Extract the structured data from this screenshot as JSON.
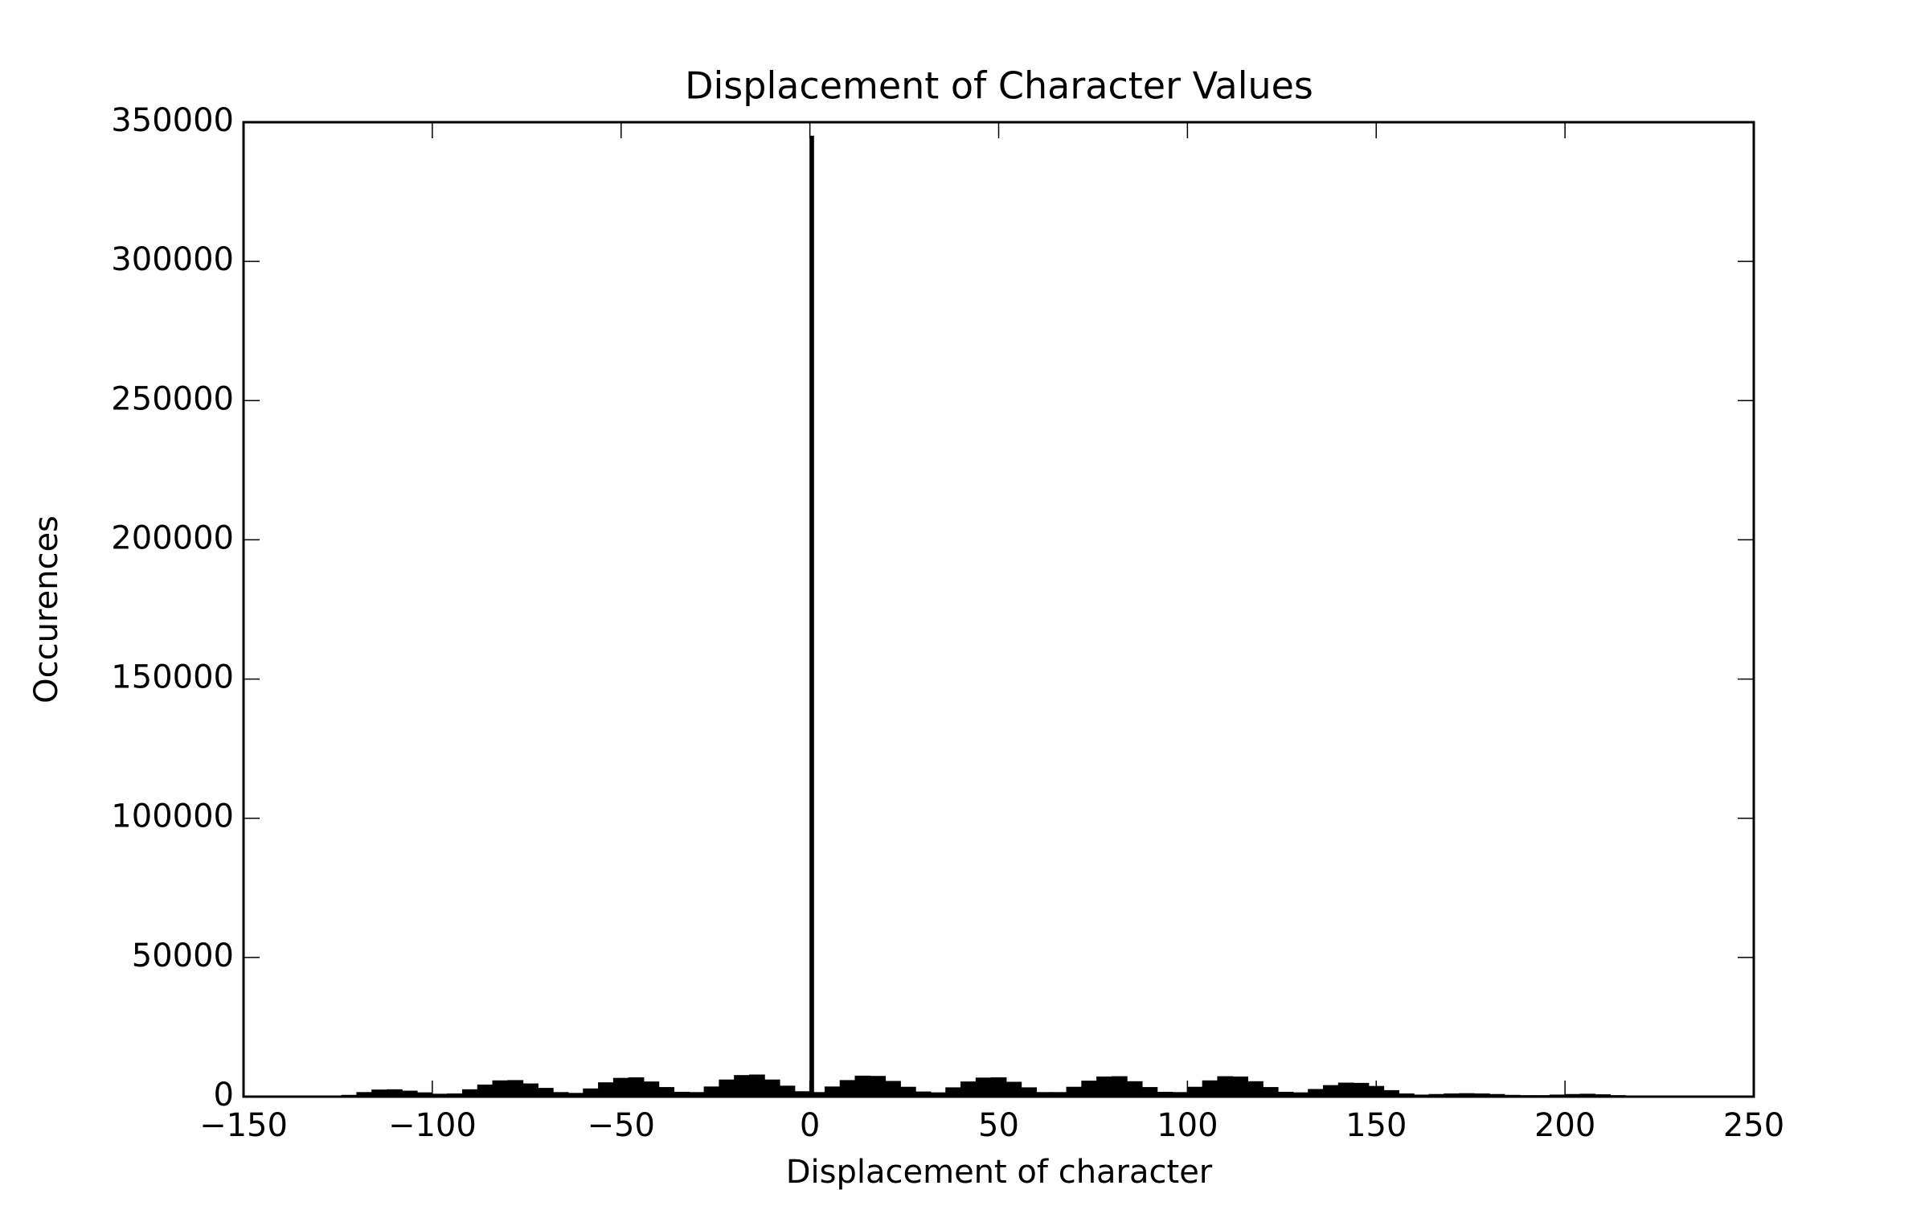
{
  "chart_data": {
    "type": "histogram",
    "title": "Displacement of Character Values",
    "x_label": "Displacement of character",
    "y_label": "Occurences",
    "color": "#000000",
    "bins": [
      -124,
      -120,
      -116,
      -112,
      -108,
      -104,
      -100,
      -96,
      -92,
      -88,
      -84,
      -80,
      -76,
      -72,
      -68,
      -64,
      -60,
      -56,
      -52,
      -48,
      -44,
      -40,
      -36,
      -32,
      -28,
      -24,
      -20,
      -16,
      -12,
      -8,
      -4,
      0,
      1,
      4,
      8,
      12,
      16,
      20,
      24,
      28,
      32,
      36,
      40,
      44,
      48,
      52,
      56,
      60,
      64,
      68,
      72,
      76,
      80,
      84,
      88,
      92,
      96,
      100,
      104,
      108,
      112,
      116,
      120,
      124,
      128,
      132,
      136,
      140,
      144,
      148,
      152,
      156,
      160,
      164,
      168,
      172,
      176,
      180,
      184,
      188,
      192,
      196,
      200,
      204,
      208,
      212,
      216,
      220
    ],
    "values": [
      500,
      1500,
      2400,
      2500,
      2000,
      1400,
      900,
      1000,
      2500,
      4200,
      5700,
      5800,
      4600,
      3000,
      1500,
      1200,
      2800,
      5000,
      6600,
      6800,
      5300,
      3300,
      1600,
      1500,
      3500,
      6000,
      7600,
      7800,
      6000,
      3800,
      1800,
      345000,
      1500,
      3500,
      5800,
      7400,
      7300,
      5500,
      3400,
      1700,
      1400,
      3200,
      5300,
      6700,
      6800,
      5200,
      3200,
      1500,
      1500,
      3400,
      5600,
      7100,
      7200,
      5400,
      3300,
      1600,
      1500,
      3400,
      5700,
      7200,
      7100,
      5400,
      3300,
      1600,
      1400,
      2600,
      4000,
      4900,
      4800,
      3700,
      2200,
      1000,
      600,
      800,
      1000,
      1100,
      1000,
      800,
      500,
      400,
      400,
      600,
      800,
      900,
      700,
      400,
      100
    ],
    "xlim": [
      -150,
      250
    ],
    "xticks": [
      {
        "value": -150,
        "label": "−150"
      },
      {
        "value": -100,
        "label": "−100"
      },
      {
        "value": -50,
        "label": "−50"
      },
      0,
      50,
      100,
      150,
      200,
      250
    ],
    "ylim": [
      0,
      350000
    ],
    "yticks": [
      0,
      50000,
      100000,
      150000,
      200000,
      250000,
      300000,
      350000
    ]
  }
}
